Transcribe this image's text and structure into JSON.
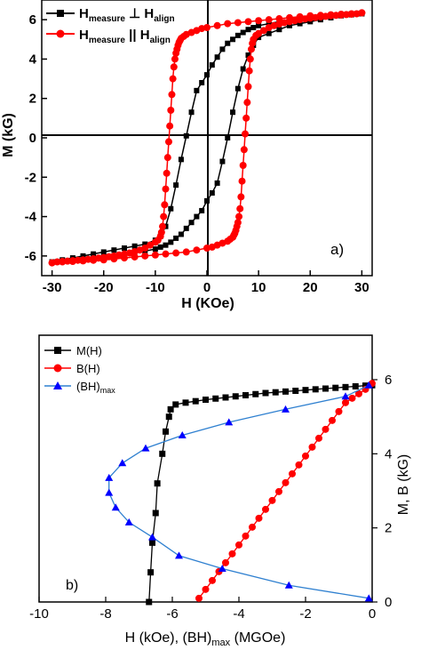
{
  "chart_data": [
    {
      "type": "line",
      "panel_label": "a)",
      "xlabel": "H (KOe)",
      "ylabel": "M (kG)",
      "xlim": [
        -32,
        32
      ],
      "ylim": [
        -7,
        7
      ],
      "xticks": [
        -30,
        -20,
        -10,
        0,
        10,
        20,
        30
      ],
      "yticks": [
        -6,
        -4,
        -2,
        0,
        2,
        4,
        6
      ],
      "zero_lines": true,
      "legend_position": "top-left",
      "legend": [
        {
          "base": "H",
          "sub1": "measure",
          "op": " ⊥ ",
          "base2": "H",
          "sub2": "align",
          "marker": "square",
          "color": "#000000"
        },
        {
          "base": "H",
          "sub1": "measure",
          "op": " || ",
          "base2": "H",
          "sub2": "align",
          "marker": "circle",
          "color": "#ff0000"
        }
      ],
      "series": [
        {
          "name": "H measure ⊥ H align",
          "color": "#000000",
          "marker": "square",
          "x": [
            -30,
            -28,
            -26,
            -24,
            -22,
            -20,
            -18,
            -16,
            -14,
            -12,
            -10,
            -9,
            -8,
            -7,
            -6,
            -5,
            -4,
            -3,
            -2,
            -1,
            0,
            1,
            2,
            3,
            4,
            5,
            6,
            7,
            8,
            9,
            10,
            12,
            14,
            16,
            18,
            20,
            22,
            24,
            26,
            28,
            30,
            30,
            28,
            26,
            24,
            22,
            20,
            18,
            16,
            14,
            12,
            10,
            9,
            8,
            7,
            6,
            5,
            4,
            3,
            2,
            1,
            0,
            -1,
            -2,
            -3,
            -4,
            -5,
            -6,
            -7,
            -8,
            -9,
            -10,
            -12,
            -14,
            -16,
            -18,
            -20,
            -22,
            -24,
            -26,
            -28,
            -30
          ],
          "y": [
            -6.3,
            -6.2,
            -6.1,
            -6.0,
            -5.9,
            -5.8,
            -5.7,
            -5.6,
            -5.5,
            -5.4,
            -5.2,
            -5.0,
            -4.5,
            -3.6,
            -2.4,
            -1.1,
            0.1,
            1.3,
            2.4,
            2.8,
            3.2,
            3.7,
            4.1,
            4.5,
            4.8,
            5.0,
            5.2,
            5.35,
            5.5,
            5.6,
            5.7,
            5.8,
            5.9,
            6.0,
            6.05,
            6.1,
            6.15,
            6.2,
            6.25,
            6.3,
            6.3,
            6.3,
            6.25,
            6.2,
            6.1,
            6.0,
            5.9,
            5.8,
            5.7,
            5.5,
            5.3,
            5.1,
            4.7,
            4.2,
            3.5,
            2.5,
            1.3,
            0.0,
            -1.2,
            -2.3,
            -2.8,
            -3.2,
            -3.7,
            -4.0,
            -4.3,
            -4.6,
            -4.9,
            -5.1,
            -5.3,
            -5.45,
            -5.55,
            -5.65,
            -5.75,
            -5.85,
            -5.95,
            -6.0,
            -6.05,
            -6.1,
            -6.15,
            -6.2,
            -6.25,
            -6.3
          ]
        },
        {
          "name": "H measure || H align",
          "color": "#ff0000",
          "marker": "circle",
          "x": [
            -30,
            -29,
            -28,
            -27,
            -26,
            -25,
            -24,
            -23,
            -22,
            -21,
            -20,
            -19,
            -18,
            -17,
            -16,
            -15,
            -14,
            -13,
            -12,
            -11,
            -10,
            -9.5,
            -9,
            -8.8,
            -8.6,
            -8.4,
            -8.2,
            -8.0,
            -7.8,
            -7.6,
            -7.4,
            -7.2,
            -7.0,
            -6.8,
            -6.6,
            -6.4,
            -6.2,
            -6.0,
            -5.8,
            -5.6,
            -5.4,
            -5.2,
            -5.0,
            -4.5,
            -4.0,
            -3.0,
            -2.0,
            -1.0,
            0,
            2,
            4,
            6,
            8,
            10,
            12,
            14,
            16,
            18,
            20,
            22,
            24,
            26,
            28,
            30,
            30,
            29,
            28,
            27,
            26,
            25,
            24,
            23,
            22,
            21,
            20,
            19,
            18,
            17,
            16,
            15,
            14,
            13,
            12,
            11,
            10,
            9.5,
            9,
            8.8,
            8.6,
            8.4,
            8.2,
            8.0,
            7.8,
            7.6,
            7.4,
            7.2,
            7.0,
            6.8,
            6.6,
            6.4,
            6.2,
            6.0,
            5.8,
            5.6,
            5.4,
            5.2,
            5.0,
            4.5,
            4.0,
            3.0,
            2.0,
            1.0,
            0,
            -2,
            -4,
            -6,
            -8,
            -10,
            -12,
            -14,
            -16,
            -18,
            -20,
            -22,
            -24,
            -26,
            -28,
            -30
          ],
          "y": [
            -6.35,
            -6.3,
            -6.28,
            -6.26,
            -6.24,
            -6.22,
            -6.2,
            -6.17,
            -6.14,
            -6.11,
            -6.08,
            -6.04,
            -6.0,
            -5.95,
            -5.9,
            -5.85,
            -5.78,
            -5.7,
            -5.6,
            -5.45,
            -5.3,
            -5.2,
            -5.0,
            -4.8,
            -4.5,
            -4.0,
            -3.4,
            -2.6,
            -1.8,
            -1.0,
            -0.2,
            0.6,
            1.4,
            2.2,
            3.0,
            3.6,
            4.0,
            4.3,
            4.5,
            4.7,
            4.85,
            4.95,
            5.05,
            5.15,
            5.25,
            5.35,
            5.45,
            5.55,
            5.6,
            5.7,
            5.8,
            5.85,
            5.9,
            5.95,
            6.0,
            6.05,
            6.1,
            6.15,
            6.2,
            6.22,
            6.25,
            6.28,
            6.3,
            6.35,
            6.35,
            6.3,
            6.28,
            6.26,
            6.24,
            6.22,
            6.2,
            6.17,
            6.14,
            6.11,
            6.08,
            6.04,
            6.0,
            5.95,
            5.9,
            5.85,
            5.78,
            5.7,
            5.6,
            5.45,
            5.3,
            5.2,
            5.0,
            4.8,
            4.5,
            4.0,
            3.4,
            2.6,
            1.8,
            1.0,
            0.2,
            -0.6,
            -1.4,
            -2.2,
            -3.0,
            -3.6,
            -4.0,
            -4.3,
            -4.5,
            -4.7,
            -4.85,
            -4.95,
            -5.05,
            -5.15,
            -5.25,
            -5.35,
            -5.45,
            -5.55,
            -5.6,
            -5.7,
            -5.8,
            -5.85,
            -5.9,
            -5.95,
            -6.0,
            -6.05,
            -6.1,
            -6.15,
            -6.2,
            -6.22,
            -6.25,
            -6.28,
            -6.3,
            -6.35
          ]
        }
      ]
    },
    {
      "type": "line",
      "panel_label": "b)",
      "xlabel": {
        "prefix": "H (kOe), (BH)",
        "sub": "max",
        "suffix": " (MGOe)"
      },
      "ylabel": "M, B (kG)",
      "y_axis_side": "right",
      "xlim": [
        -10,
        0
      ],
      "ylim": [
        0,
        7.2
      ],
      "xticks": [
        -10,
        -8,
        -6,
        -4,
        -2,
        0
      ],
      "yticks": [
        0,
        2,
        4,
        6
      ],
      "legend_position": "top-left",
      "legend": [
        {
          "label": "M(H)",
          "marker": "square",
          "color": "#000000"
        },
        {
          "label": "B(H)",
          "marker": "circle",
          "color": "#ff0000"
        },
        {
          "label": "(BH)",
          "sub": "max",
          "marker": "triangle",
          "color": "#0000ff"
        }
      ],
      "series": [
        {
          "name": "M(H)",
          "color": "#000000",
          "line_color": "#000000",
          "marker": "square",
          "x": [
            -6.7,
            -6.65,
            -6.6,
            -6.5,
            -6.45,
            -6.3,
            -6.2,
            -6.1,
            -6.05,
            -5.9,
            -5.6,
            -5.3,
            -5.0,
            -4.7,
            -4.4,
            -4.1,
            -3.8,
            -3.5,
            -3.2,
            -2.9,
            -2.6,
            -2.3,
            -2.0,
            -1.7,
            -1.4,
            -1.1,
            -0.8,
            -0.5,
            -0.2,
            0
          ],
          "y": [
            0.0,
            0.8,
            1.6,
            2.4,
            3.2,
            4.0,
            4.6,
            5.0,
            5.2,
            5.33,
            5.38,
            5.42,
            5.46,
            5.49,
            5.52,
            5.55,
            5.58,
            5.61,
            5.64,
            5.66,
            5.68,
            5.7,
            5.72,
            5.74,
            5.76,
            5.78,
            5.8,
            5.82,
            5.84,
            5.85
          ]
        },
        {
          "name": "B(H)",
          "color": "#ff0000",
          "line_color": "#ff0000",
          "marker": "circle",
          "x": [
            -5.2,
            -5.0,
            -4.8,
            -4.6,
            -4.4,
            -4.2,
            -4.0,
            -3.8,
            -3.6,
            -3.4,
            -3.2,
            -3.0,
            -2.8,
            -2.6,
            -2.4,
            -2.2,
            -2.0,
            -1.8,
            -1.6,
            -1.4,
            -1.2,
            -1.0,
            -0.8,
            -0.6,
            -0.4,
            -0.2,
            0
          ],
          "y": [
            0.1,
            0.34,
            0.58,
            0.82,
            1.06,
            1.3,
            1.54,
            1.78,
            2.02,
            2.26,
            2.5,
            2.74,
            2.98,
            3.22,
            3.46,
            3.7,
            3.94,
            4.18,
            4.42,
            4.66,
            4.9,
            5.14,
            5.38,
            5.5,
            5.62,
            5.74,
            5.9
          ]
        },
        {
          "name": "(BH)max",
          "color": "#0000ff",
          "line_color": "#2f80d0",
          "marker": "triangle",
          "x": [
            -0.1,
            -0.8,
            -2.6,
            -4.3,
            -5.7,
            -6.8,
            -7.5,
            -7.9,
            -7.9,
            -7.7,
            -7.3,
            -6.6,
            -5.8,
            -4.5,
            -2.5,
            -0.1
          ],
          "y": [
            5.85,
            5.55,
            5.2,
            4.85,
            4.5,
            4.15,
            3.75,
            3.35,
            2.95,
            2.55,
            2.15,
            1.75,
            1.25,
            0.9,
            0.45,
            0.1
          ]
        }
      ]
    }
  ]
}
